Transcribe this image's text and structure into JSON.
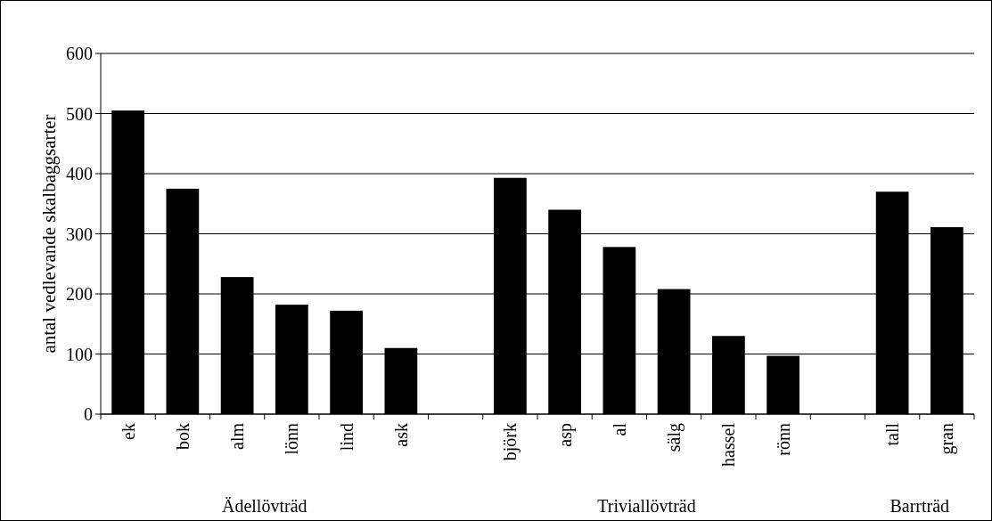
{
  "chart_data": {
    "type": "bar",
    "ylabel": "antal vedlevande skalbaggsarter",
    "categories": [
      "ek",
      "bok",
      "alm",
      "lönn",
      "lind",
      "ask",
      null,
      "björk",
      "asp",
      "al",
      "sälg",
      "hassel",
      "rönn",
      null,
      "tall",
      "gran"
    ],
    "values": [
      505,
      375,
      228,
      182,
      172,
      110,
      null,
      393,
      340,
      278,
      208,
      130,
      97,
      null,
      370,
      311
    ],
    "color": "#000000",
    "ylim": [
      0,
      600
    ],
    "yticks": [
      0,
      100,
      200,
      300,
      400,
      500,
      600
    ],
    "grid": "y",
    "annotations": [
      "Ädellövträd",
      "Triviallövträd",
      "Barrträd"
    ]
  }
}
